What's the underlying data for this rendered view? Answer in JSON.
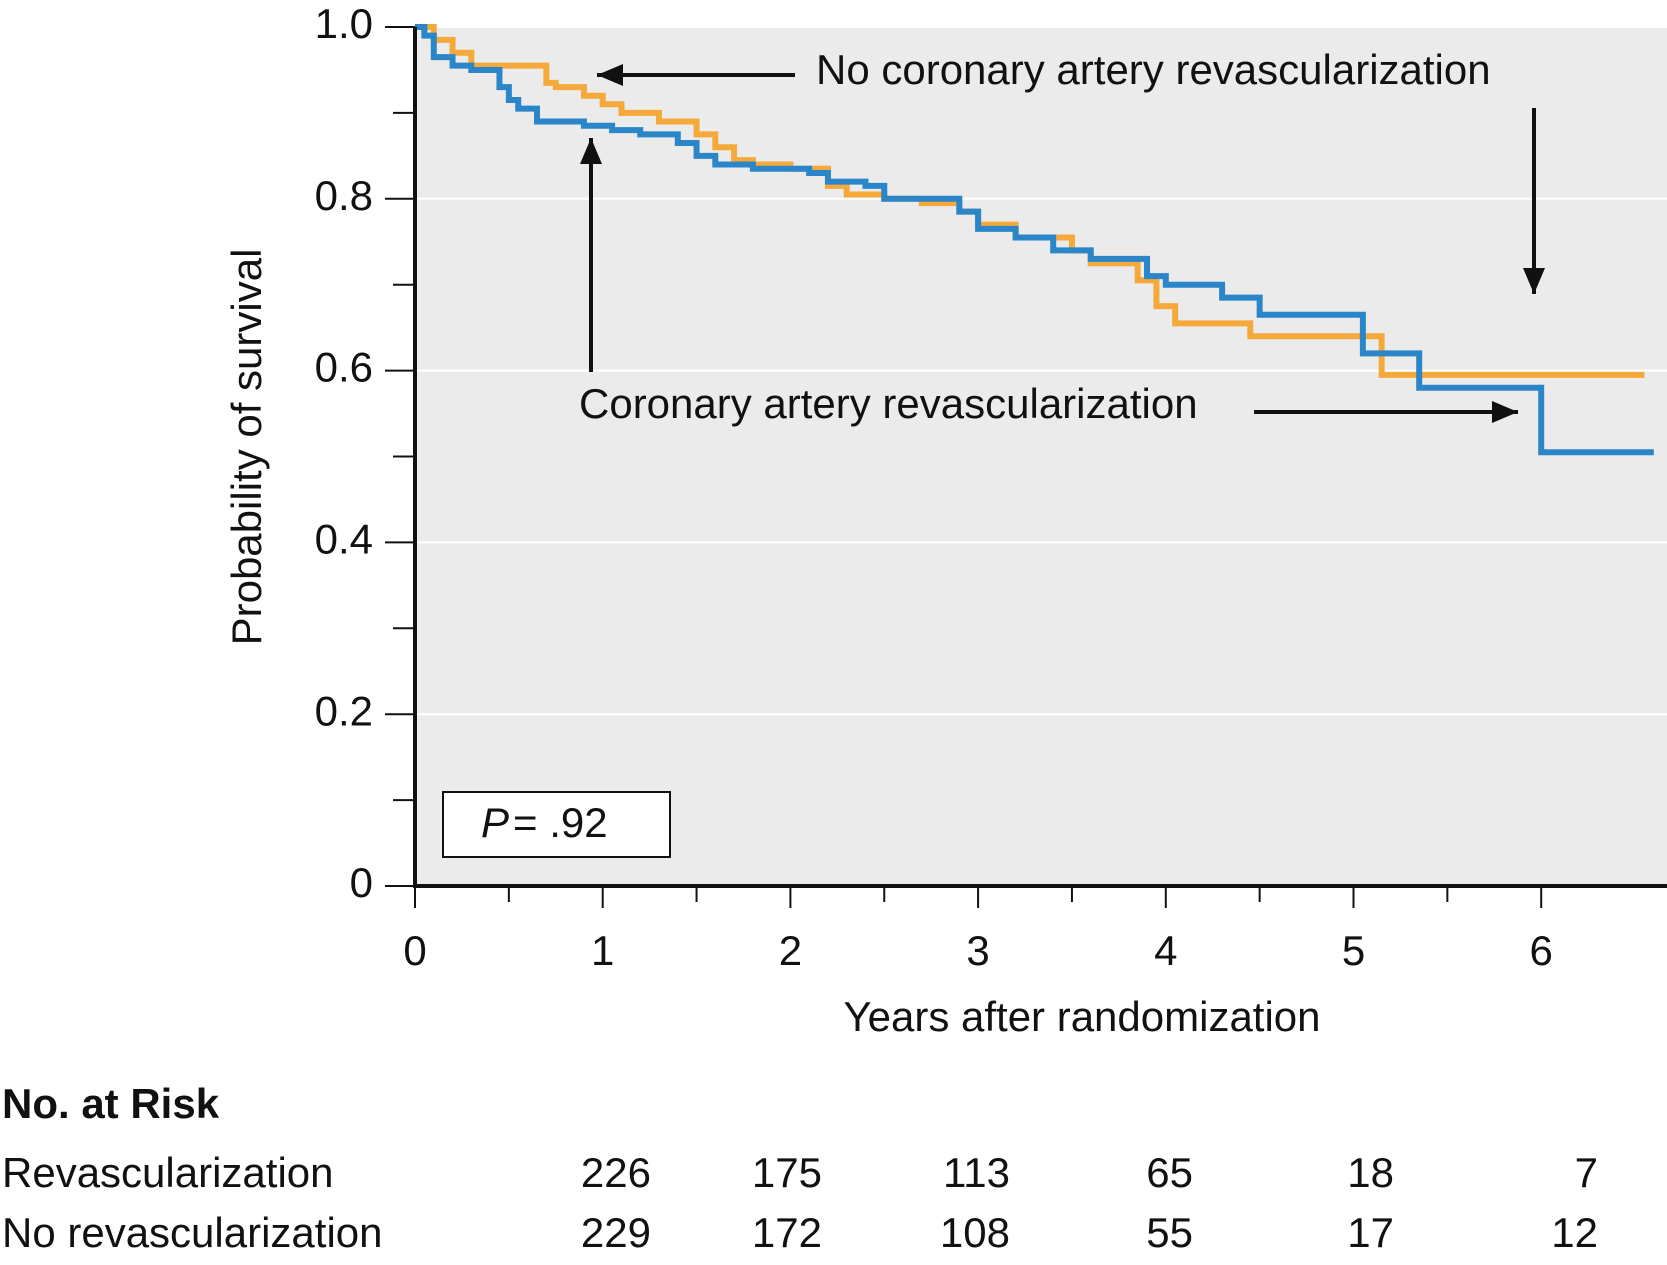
{
  "chart_data": {
    "type": "step",
    "xlabel": "Years after randomization",
    "ylabel": "Probability of survival",
    "xlim": [
      0,
      6.65
    ],
    "ylim": [
      0,
      1
    ],
    "xticks": [
      0,
      1,
      2,
      3,
      4,
      5,
      6
    ],
    "xminorticks": [
      0.5,
      1.5,
      2.5,
      3.5,
      4.5,
      5.5
    ],
    "yticks": [
      0,
      0.2,
      0.4,
      0.6,
      0.8,
      {
        "value": 1,
        "label": "1.0"
      }
    ],
    "yminorticks": [
      0.1,
      0.3,
      0.5,
      0.7,
      0.9
    ],
    "grid": true,
    "background": "#ebebeb",
    "series": [
      {
        "name": "No coronary artery revascularization",
        "color": "#f5a93b",
        "x": [
          0,
          0.1,
          0.2,
          0.3,
          0.7,
          0.75,
          0.9,
          1.0,
          1.1,
          1.3,
          1.5,
          1.6,
          1.7,
          1.8,
          2.0,
          2.2,
          2.3,
          2.5,
          2.7,
          2.9,
          3.0,
          3.2,
          3.5,
          3.6,
          3.85,
          3.95,
          4.05,
          4.45,
          5.15,
          6.55
        ],
        "values": [
          1.0,
          0.985,
          0.97,
          0.955,
          0.935,
          0.93,
          0.92,
          0.91,
          0.9,
          0.89,
          0.875,
          0.86,
          0.845,
          0.84,
          0.835,
          0.815,
          0.805,
          0.8,
          0.795,
          0.785,
          0.77,
          0.755,
          0.74,
          0.725,
          0.705,
          0.675,
          0.655,
          0.64,
          0.595,
          0.595
        ]
      },
      {
        "name": "Coronary artery revascularization",
        "color": "#2a86c8",
        "x": [
          0,
          0.05,
          0.1,
          0.2,
          0.3,
          0.45,
          0.5,
          0.55,
          0.65,
          0.9,
          1.05,
          1.2,
          1.4,
          1.5,
          1.6,
          1.8,
          2.1,
          2.2,
          2.4,
          2.5,
          2.9,
          3.0,
          3.2,
          3.4,
          3.6,
          3.9,
          4.0,
          4.3,
          4.5,
          5.05,
          5.35,
          6.0,
          6.6
        ],
        "values": [
          1.0,
          0.99,
          0.965,
          0.955,
          0.95,
          0.93,
          0.915,
          0.905,
          0.89,
          0.885,
          0.88,
          0.875,
          0.865,
          0.85,
          0.84,
          0.835,
          0.83,
          0.82,
          0.815,
          0.8,
          0.785,
          0.765,
          0.755,
          0.74,
          0.73,
          0.71,
          0.7,
          0.685,
          0.665,
          0.62,
          0.58,
          0.505,
          0.505
        ]
      }
    ],
    "p_value": {
      "symbol": "P",
      "text": "= .92"
    }
  },
  "risk_table": {
    "title": "No. at Risk",
    "rows": [
      {
        "label": "Revascularization",
        "values": [
          "226",
          "175",
          "113",
          "65",
          "18",
          "7"
        ]
      },
      {
        "label": "No revascularization",
        "values": [
          "229",
          "172",
          "108",
          "55",
          "17",
          "12"
        ]
      }
    ]
  }
}
